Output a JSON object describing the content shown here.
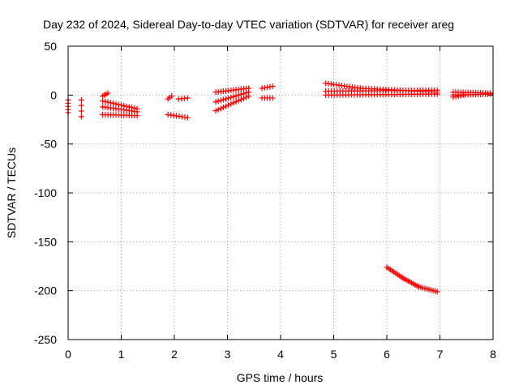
{
  "chart_data": {
    "type": "scatter",
    "title": "Day 232 of 2024, Sidereal Day-to-day VTEC variation (SDTVAR) for receiver areg",
    "xlabel": "GPS time / hours",
    "ylabel": "SDTVAR / TECUs",
    "xlim": [
      0,
      8
    ],
    "ylim": [
      -250,
      50
    ],
    "xticks": [
      0,
      1,
      2,
      3,
      4,
      5,
      6,
      7,
      8
    ],
    "yticks": [
      -250,
      -200,
      -150,
      -100,
      -50,
      0,
      50
    ],
    "grid": true,
    "legend": "none",
    "marker": "+",
    "color": "#ff0000",
    "segments": [
      {
        "x0": 0.0,
        "y0": -5,
        "x1": 0.0,
        "y1": -18,
        "n": 5
      },
      {
        "x0": 0.25,
        "y0": -5,
        "x1": 0.25,
        "y1": -22,
        "n": 4
      },
      {
        "x0": 0.65,
        "y0": -1,
        "x1": 0.75,
        "y1": 2,
        "n": 4
      },
      {
        "x0": 0.65,
        "y0": -6,
        "x1": 1.3,
        "y1": -14,
        "n": 14
      },
      {
        "x0": 0.65,
        "y0": -12,
        "x1": 1.3,
        "y1": -17,
        "n": 14
      },
      {
        "x0": 0.65,
        "y0": -20,
        "x1": 1.3,
        "y1": -21,
        "n": 14
      },
      {
        "x0": 1.88,
        "y0": -4,
        "x1": 1.95,
        "y1": -1,
        "n": 3
      },
      {
        "x0": 2.08,
        "y0": -4,
        "x1": 2.25,
        "y1": -3,
        "n": 4
      },
      {
        "x0": 1.88,
        "y0": -20,
        "x1": 2.25,
        "y1": -23,
        "n": 8
      },
      {
        "x0": 2.78,
        "y0": 3,
        "x1": 3.4,
        "y1": 7,
        "n": 14
      },
      {
        "x0": 2.78,
        "y0": -7,
        "x1": 3.4,
        "y1": 3,
        "n": 14
      },
      {
        "x0": 2.78,
        "y0": -16,
        "x1": 3.4,
        "y1": -1,
        "n": 14
      },
      {
        "x0": 3.65,
        "y0": 7,
        "x1": 3.85,
        "y1": 9,
        "n": 5
      },
      {
        "x0": 3.65,
        "y0": -3,
        "x1": 3.85,
        "y1": -3,
        "n": 5
      },
      {
        "x0": 4.85,
        "y0": 12,
        "x1": 5.5,
        "y1": 7,
        "n": 14
      },
      {
        "x0": 5.5,
        "y0": 7,
        "x1": 6.95,
        "y1": 3,
        "n": 28
      },
      {
        "x0": 4.85,
        "y0": 4,
        "x1": 6.95,
        "y1": 5,
        "n": 40
      },
      {
        "x0": 4.85,
        "y0": 0,
        "x1": 6.95,
        "y1": 1,
        "n": 40
      },
      {
        "x0": 6.0,
        "y0": -176,
        "x1": 6.3,
        "y1": -187,
        "n": 10
      },
      {
        "x0": 6.3,
        "y0": -187,
        "x1": 6.6,
        "y1": -196,
        "n": 10
      },
      {
        "x0": 6.6,
        "y0": -196,
        "x1": 6.95,
        "y1": -201,
        "n": 10
      },
      {
        "x0": 7.25,
        "y0": 3,
        "x1": 7.95,
        "y1": 2,
        "n": 16
      },
      {
        "x0": 7.25,
        "y0": 0,
        "x1": 7.95,
        "y1": 1,
        "n": 16
      },
      {
        "x0": 7.25,
        "y0": -2,
        "x1": 7.45,
        "y1": 0,
        "n": 5
      }
    ]
  }
}
